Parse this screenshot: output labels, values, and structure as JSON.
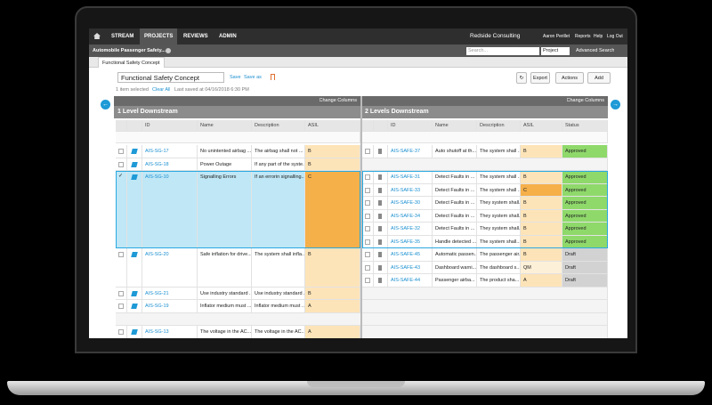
{
  "nav": {
    "items": [
      "STREAM",
      "PROJECTS",
      "REVIEWS",
      "ADMIN"
    ],
    "company": "Redside Consulting",
    "user": "Aaron Perillet",
    "links": [
      "Reports",
      "Help",
      "Log Out"
    ]
  },
  "subbar": {
    "project": "Automobile Passenger Safety...",
    "search_placeholder": "Search...",
    "scope": "Project",
    "advanced": "Advanced Search"
  },
  "tab": "Functional Safety Concept",
  "toolbar": {
    "document": "Functional Safety Concept",
    "save": "Save",
    "save_as": "Save as",
    "selection": "1 item selected",
    "clear": "Clear All",
    "last_saved": "Last saved at 04/16/2018 6:30 PM",
    "export": "Export",
    "actions": "Actions",
    "add": "Add"
  },
  "change_columns": "Change Columns",
  "table": {
    "left_title": "1 Level Downstream",
    "right_title": "2 Levels Downstream",
    "left_columns": [
      "ID",
      "Name",
      "Description",
      "ASIL"
    ],
    "right_columns": [
      "ID",
      "Name",
      "Description",
      "ASIL",
      "Status"
    ],
    "rows": [
      {
        "id": "AIS-SG-17",
        "name": "No unintented airbag ...",
        "description": "The airbag shall not ...",
        "asil": "B",
        "children": [
          {
            "id": "AIS-SAFE-37",
            "name": "Auto shutoff at th...",
            "description": "The system shall ...",
            "asil": "B",
            "status": "Approved"
          }
        ]
      },
      {
        "id": "AIS-SG-18",
        "name": "Power Outage",
        "description": "If any part of the syste...",
        "asil": "B",
        "children": []
      },
      {
        "id": "AIS-SG-10",
        "name": "Signalling Errors",
        "description": "If an errorin signalling...",
        "asil": "C",
        "selected": true,
        "children": [
          {
            "id": "AIS-SAFE-31",
            "name": "Detect Faults in ...",
            "description": "The system shall ...",
            "asil": "B",
            "status": "Approved"
          },
          {
            "id": "AIS-SAFE-33",
            "name": "Detect Faults in ...",
            "description": "The system shall ...",
            "asil": "C",
            "status": "Approved"
          },
          {
            "id": "AIS-SAFE-30",
            "name": "Detect Faults in ...",
            "description": "They system shall...",
            "asil": "B",
            "status": "Approved"
          },
          {
            "id": "AIS-SAFE-34",
            "name": "Detect Faults in ...",
            "description": "They system shall...",
            "asil": "B",
            "status": "Approved"
          },
          {
            "id": "AIS-SAFE-32",
            "name": "Detect Faults in ...",
            "description": "They system shall...",
            "asil": "B",
            "status": "Approved"
          },
          {
            "id": "AIS-SAFE-35",
            "name": "Handle detected ...",
            "description": "The system shall...",
            "asil": "B",
            "status": "Approved"
          }
        ]
      },
      {
        "id": "AIS-SG-20",
        "name": "Safe inflation for drive...",
        "description": "The system shall infla...",
        "asil": "B",
        "children": [
          {
            "id": "AIS-SAFE-45",
            "name": "Automatic passen...",
            "description": "The passenger air...",
            "asil": "B",
            "status": "Draft"
          },
          {
            "id": "AIS-SAFE-43",
            "name": "Dashboard warni...",
            "description": "The dashboard s...",
            "asil": "QM",
            "status": "Draft"
          },
          {
            "id": "AIS-SAFE-44",
            "name": "Passenger airba...",
            "description": "The product sha...",
            "asil": "A",
            "status": "Draft"
          }
        ]
      },
      {
        "id": "AIS-SG-21",
        "name": "Use industry standard ...",
        "description": "Use industry standard ...",
        "asil": "B",
        "children": []
      },
      {
        "id": "AIS-SG-19",
        "name": "Inflator medium must ...",
        "description": "Inflator medium must ...",
        "asil": "A",
        "children": []
      },
      {
        "id": "AIS-SG-13",
        "name": "The voltage in the AC...",
        "description": "The voltage in the AC...",
        "asil": "A",
        "children": []
      }
    ]
  }
}
